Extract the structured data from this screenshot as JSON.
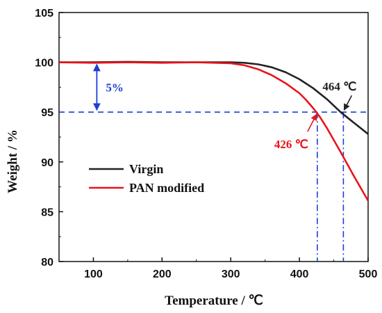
{
  "chart_data": {
    "type": "line",
    "xlabel": "Temperature / ℃",
    "ylabel": "Weight / %",
    "xlim": [
      50,
      500
    ],
    "ylim": [
      80,
      105
    ],
    "xticks": [
      100,
      200,
      300,
      400,
      500
    ],
    "yticks": [
      80,
      85,
      90,
      95,
      100,
      105
    ],
    "grid": false,
    "legend_position": "lower-left",
    "series": [
      {
        "name": "Virgin",
        "color": "#222222",
        "x": [
          50,
          100,
          150,
          200,
          250,
          300,
          320,
          340,
          360,
          380,
          400,
          420,
          440,
          460,
          480,
          500
        ],
        "y": [
          100.0,
          100.0,
          100.05,
          100.0,
          100.0,
          100.0,
          99.95,
          99.8,
          99.5,
          99.0,
          98.3,
          97.4,
          96.3,
          95.0,
          93.9,
          92.8
        ]
      },
      {
        "name": "PAN modified",
        "color": "#e8141b",
        "x": [
          50,
          100,
          150,
          200,
          250,
          300,
          320,
          340,
          360,
          380,
          400,
          410,
          420,
          430,
          440,
          460,
          480,
          500
        ],
        "y": [
          100.0,
          99.95,
          100.0,
          99.95,
          100.0,
          99.9,
          99.7,
          99.3,
          98.7,
          97.9,
          96.9,
          96.2,
          95.4,
          94.5,
          93.4,
          91.0,
          88.5,
          86.1
        ]
      }
    ],
    "annotations": {
      "five_percent": {
        "text": "5%",
        "x": 105,
        "from": 100,
        "to": 95,
        "color": "#1a3fd6"
      },
      "threshold_line": {
        "y": 95,
        "color": "#1a3fd6"
      },
      "virgin_onset": {
        "text": "464 ℃",
        "x": 464,
        "y": 95,
        "color": "#222222"
      },
      "pan_onset": {
        "text": "426 ℃",
        "x": 426,
        "y": 95,
        "color": "#e8141b"
      }
    }
  }
}
